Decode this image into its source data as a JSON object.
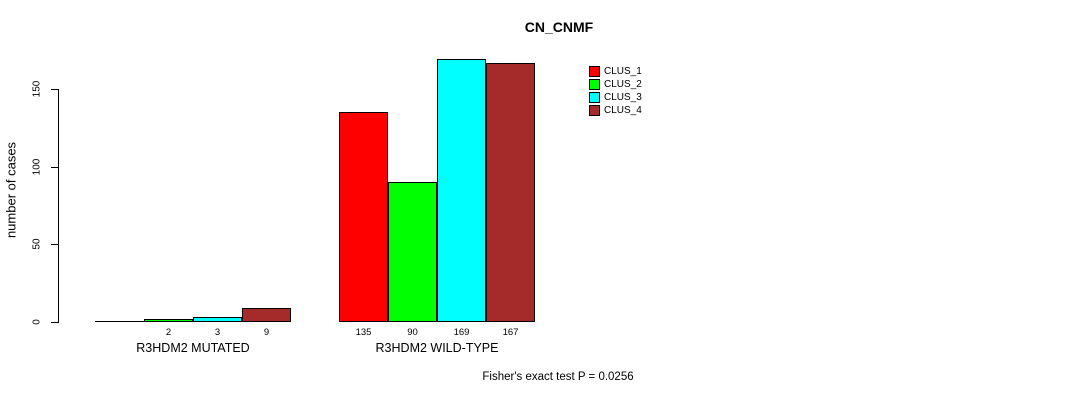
{
  "title": "CN_CNMF",
  "y_axis": {
    "label": "number of cases",
    "tick_labels": [
      "0",
      "50",
      "100",
      "150"
    ]
  },
  "footer": "Fisher's exact test P = 0.0256",
  "chart_data": {
    "type": "bar",
    "title": "CN_CNMF",
    "xlabel": "",
    "ylabel": "number of cases",
    "categories": [
      "R3HDM2 MUTATED",
      "R3HDM2 WILD-TYPE"
    ],
    "series": [
      {
        "name": "CLUS_1",
        "color": "#ff0000",
        "values": [
          0,
          135
        ]
      },
      {
        "name": "CLUS_2",
        "color": "#00ff00",
        "values": [
          2,
          90
        ]
      },
      {
        "name": "CLUS_3",
        "color": "#00ffff",
        "values": [
          3,
          169
        ]
      },
      {
        "name": "CLUS_4",
        "color": "#a52a2a",
        "values": [
          9,
          167
        ]
      }
    ],
    "bar_value_labels": [
      [
        "",
        "2",
        "3",
        "9"
      ],
      [
        "135",
        "90",
        "169",
        "167"
      ]
    ],
    "yticks": [
      0,
      50,
      100,
      150
    ],
    "ylim": [
      0,
      169
    ],
    "grid": false,
    "legend_position": "top-right",
    "legend_entries": [
      "CLUS_1",
      "CLUS_2",
      "CLUS_3",
      "CLUS_4"
    ],
    "annotation": "Fisher's exact test P = 0.0256"
  }
}
